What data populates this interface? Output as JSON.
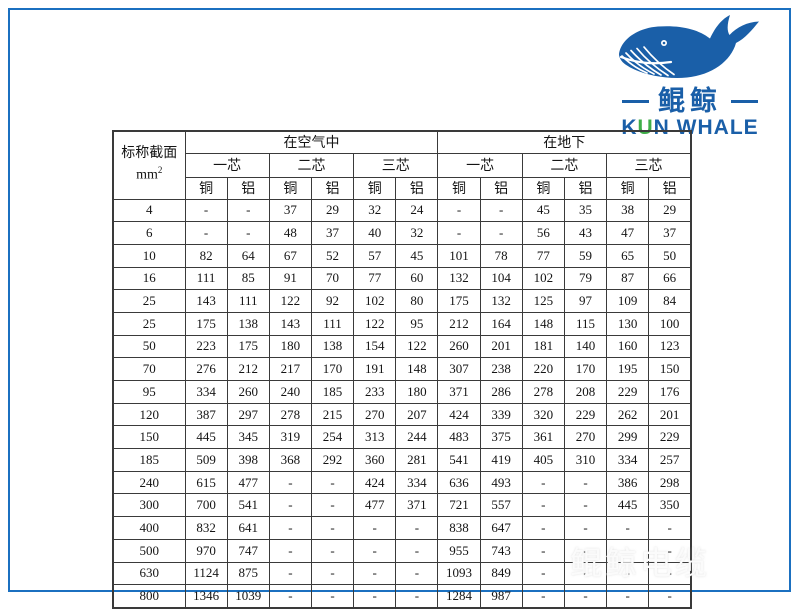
{
  "frame": {
    "border_color": "#1b70c0"
  },
  "logo": {
    "icon": "whale-icon",
    "brand_cn": "鲲鲸",
    "brand_en_k": "K",
    "brand_en_u": "U",
    "brand_en_rest": "N WHALE",
    "blue": "#1a5fa8",
    "green": "#3fae49"
  },
  "table": {
    "corner": {
      "line1": "标称截面",
      "line2": "mm",
      "sup": "2"
    },
    "env_headers": [
      "在空气中",
      "在地下"
    ],
    "core_headers": [
      "一芯",
      "二芯",
      "三芯"
    ],
    "material_headers": [
      "铜",
      "铝"
    ],
    "rows": [
      {
        "section": "4",
        "values": [
          "-",
          "-",
          "37",
          "29",
          "32",
          "24",
          "-",
          "-",
          "45",
          "35",
          "38",
          "29"
        ]
      },
      {
        "section": "6",
        "values": [
          "-",
          "-",
          "48",
          "37",
          "40",
          "32",
          "-",
          "-",
          "56",
          "43",
          "47",
          "37"
        ]
      },
      {
        "section": "10",
        "values": [
          "82",
          "64",
          "67",
          "52",
          "57",
          "45",
          "101",
          "78",
          "77",
          "59",
          "65",
          "50"
        ]
      },
      {
        "section": "16",
        "values": [
          "111",
          "85",
          "91",
          "70",
          "77",
          "60",
          "132",
          "104",
          "102",
          "79",
          "87",
          "66"
        ]
      },
      {
        "section": "25",
        "values": [
          "143",
          "111",
          "122",
          "92",
          "102",
          "80",
          "175",
          "132",
          "125",
          "97",
          "109",
          "84"
        ]
      },
      {
        "section": "25",
        "values": [
          "175",
          "138",
          "143",
          "111",
          "122",
          "95",
          "212",
          "164",
          "148",
          "115",
          "130",
          "100"
        ]
      },
      {
        "section": "50",
        "values": [
          "223",
          "175",
          "180",
          "138",
          "154",
          "122",
          "260",
          "201",
          "181",
          "140",
          "160",
          "123"
        ]
      },
      {
        "section": "70",
        "values": [
          "276",
          "212",
          "217",
          "170",
          "191",
          "148",
          "307",
          "238",
          "220",
          "170",
          "195",
          "150"
        ]
      },
      {
        "section": "95",
        "values": [
          "334",
          "260",
          "240",
          "185",
          "233",
          "180",
          "371",
          "286",
          "278",
          "208",
          "229",
          "176"
        ]
      },
      {
        "section": "120",
        "values": [
          "387",
          "297",
          "278",
          "215",
          "270",
          "207",
          "424",
          "339",
          "320",
          "229",
          "262",
          "201"
        ]
      },
      {
        "section": "150",
        "values": [
          "445",
          "345",
          "319",
          "254",
          "313",
          "244",
          "483",
          "375",
          "361",
          "270",
          "299",
          "229"
        ]
      },
      {
        "section": "185",
        "values": [
          "509",
          "398",
          "368",
          "292",
          "360",
          "281",
          "541",
          "419",
          "405",
          "310",
          "334",
          "257"
        ]
      },
      {
        "section": "240",
        "values": [
          "615",
          "477",
          "-",
          "-",
          "424",
          "334",
          "636",
          "493",
          "-",
          "-",
          "386",
          "298"
        ]
      },
      {
        "section": "300",
        "values": [
          "700",
          "541",
          "-",
          "-",
          "477",
          "371",
          "721",
          "557",
          "-",
          "-",
          "445",
          "350"
        ]
      },
      {
        "section": "400",
        "values": [
          "832",
          "641",
          "-",
          "-",
          "-",
          "-",
          "838",
          "647",
          "-",
          "-",
          "-",
          "-"
        ]
      },
      {
        "section": "500",
        "values": [
          "970",
          "747",
          "-",
          "-",
          "-",
          "-",
          "955",
          "743",
          "-",
          "-",
          "-",
          "-"
        ]
      },
      {
        "section": "630",
        "values": [
          "1124",
          "875",
          "-",
          "-",
          "-",
          "-",
          "1093",
          "849",
          "-",
          "-",
          "-",
          "-"
        ]
      },
      {
        "section": "800",
        "values": [
          "1346",
          "1039",
          "-",
          "-",
          "-",
          "-",
          "1284",
          "987",
          "-",
          "-",
          "-",
          "-"
        ]
      }
    ]
  },
  "watermark": {
    "text": "鲲鲸电缆"
  }
}
